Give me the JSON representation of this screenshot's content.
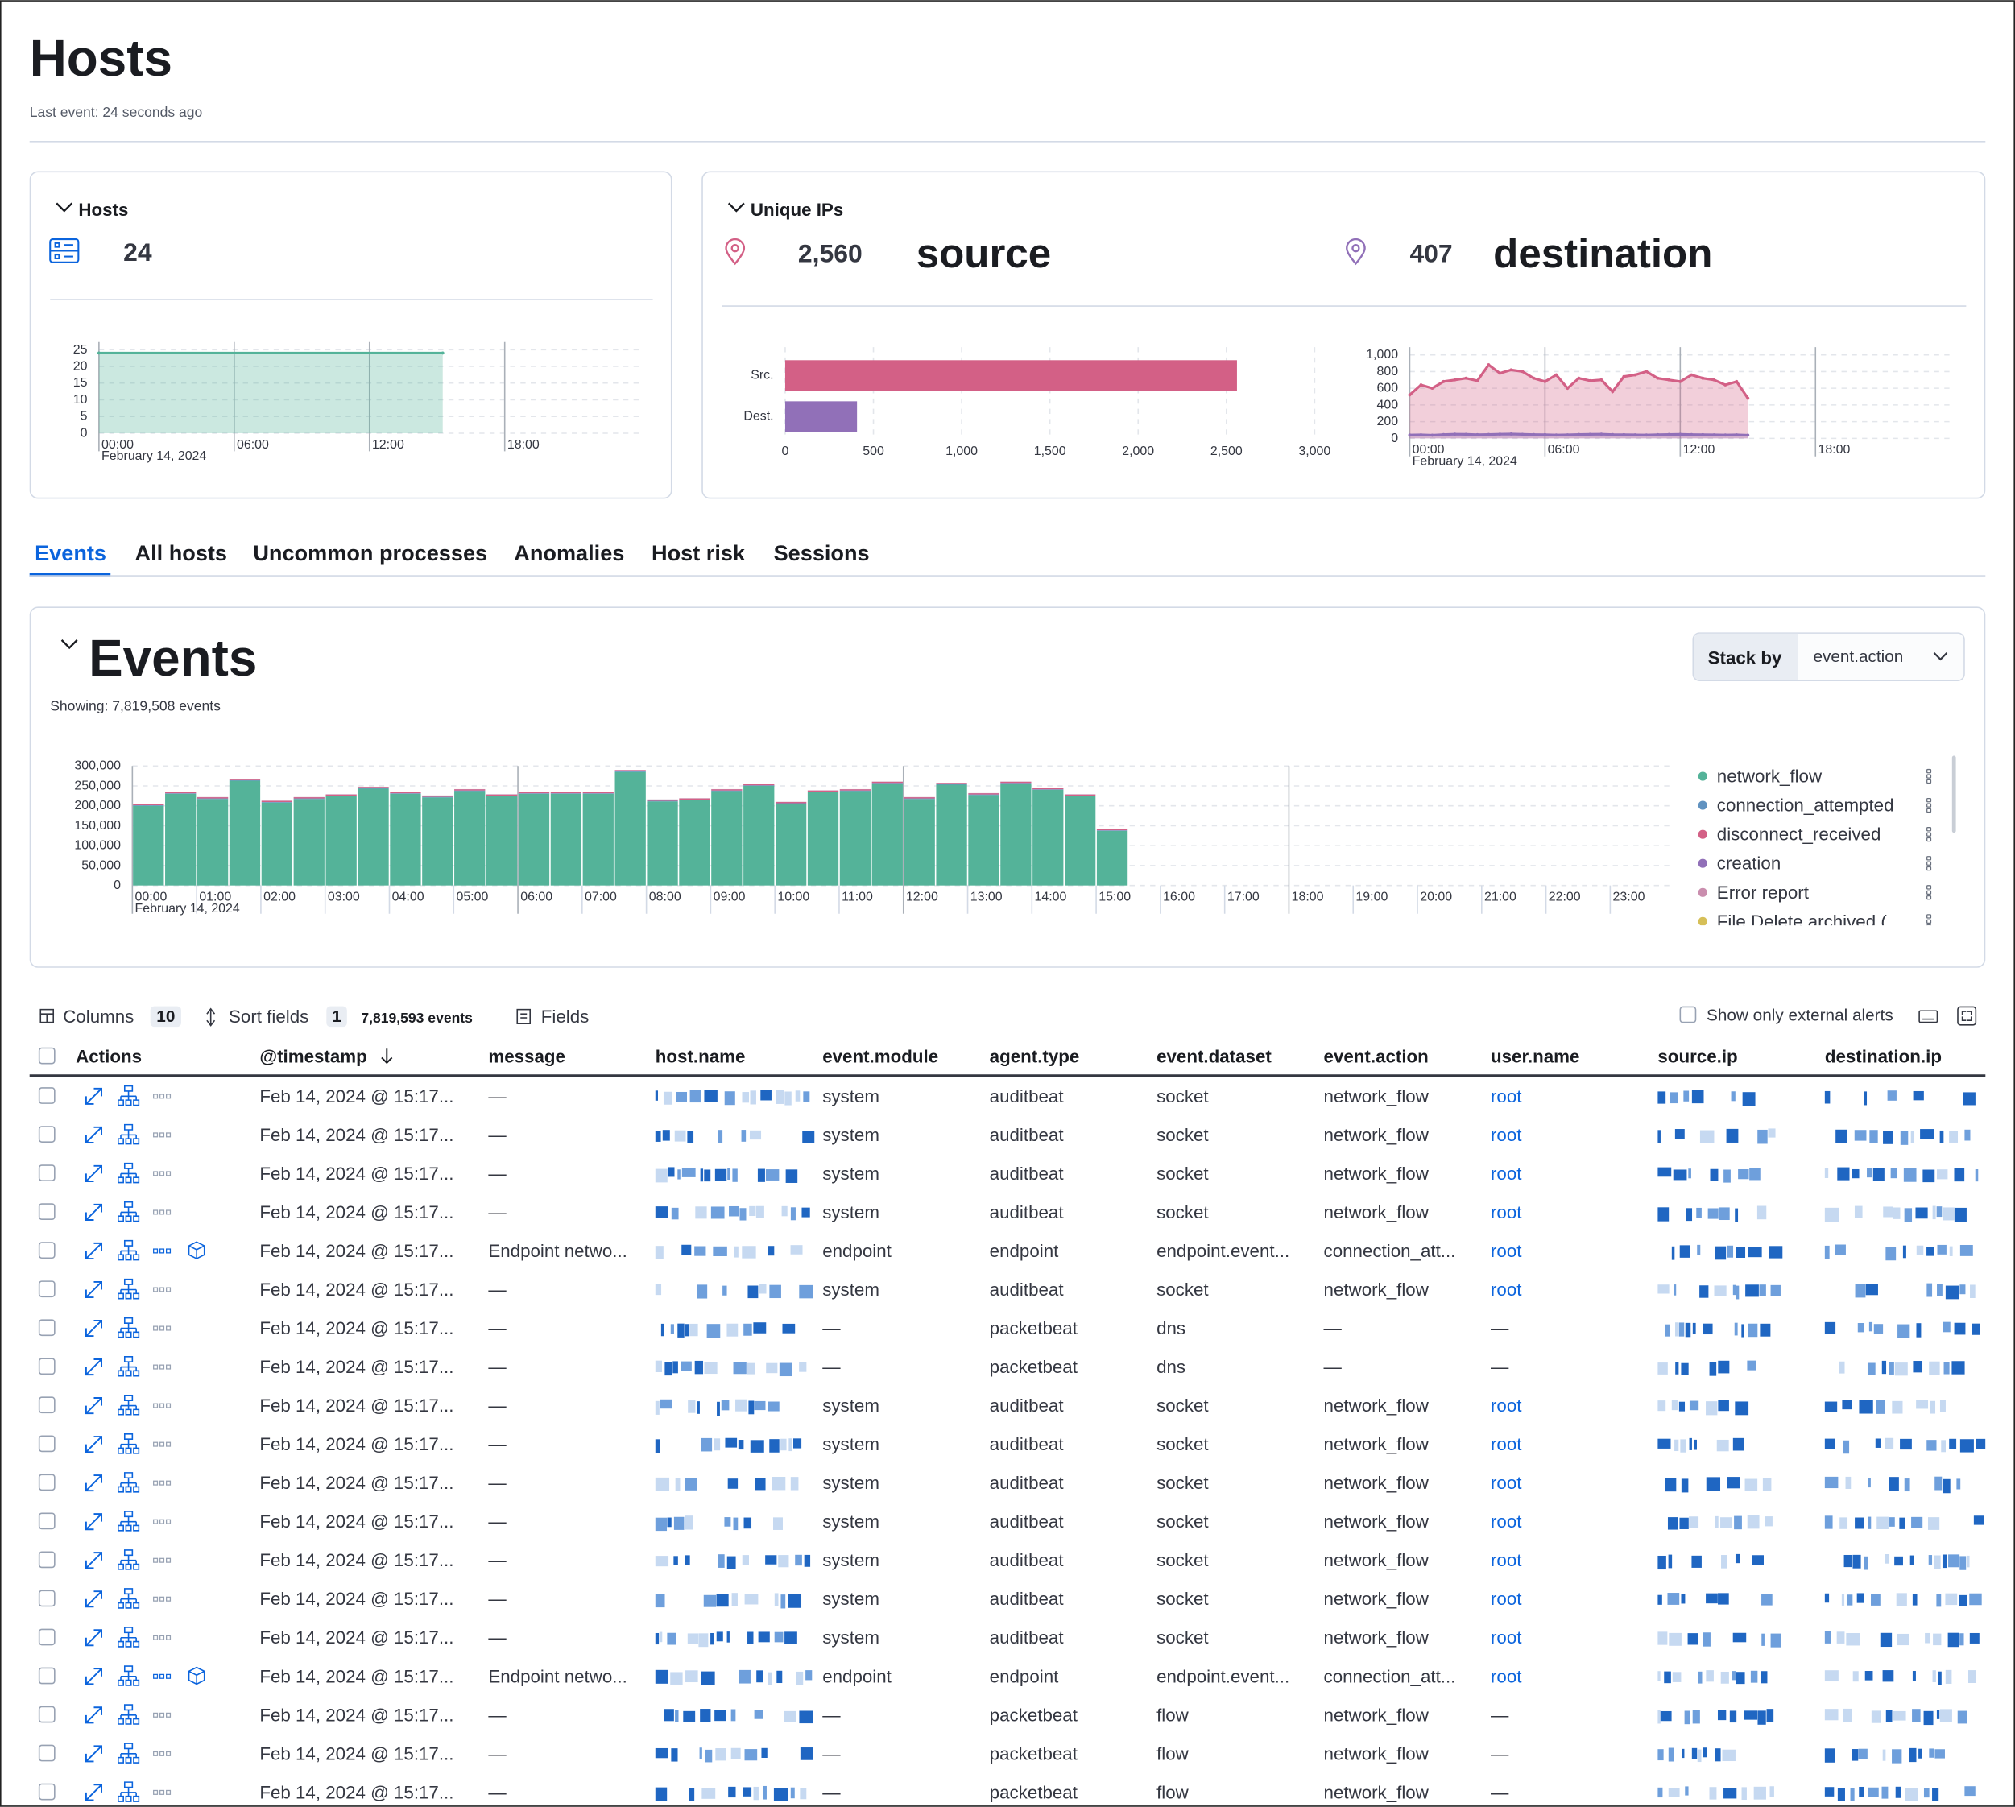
{
  "header": {
    "title": "Hosts",
    "subtitle": "Last event: 24 seconds ago"
  },
  "hosts_panel": {
    "title": "Hosts",
    "count": "24"
  },
  "unique_ips_panel": {
    "title": "Unique IPs",
    "source": {
      "count": "2,560",
      "label": "source"
    },
    "destination": {
      "count": "407",
      "label": "destination"
    }
  },
  "tabs": [
    "Events",
    "All hosts",
    "Uncommon processes",
    "Anomalies",
    "Host risk",
    "Sessions"
  ],
  "events_panel": {
    "title": "Events",
    "subtitle": "Showing: 7,819,508 events",
    "stack_by_label": "Stack by",
    "stack_by_value": "event.action"
  },
  "chart_data": [
    {
      "type": "area",
      "x": [
        0,
        15.25
      ],
      "series": [
        {
          "name": "Hosts",
          "color": "#54b399",
          "values": [
            24,
            24
          ]
        }
      ],
      "xlim": [
        0,
        24
      ],
      "xticks": [
        {
          "value": 0,
          "label": "00:00"
        },
        {
          "value": 6,
          "label": "06:00"
        },
        {
          "value": 12,
          "label": "12:00"
        },
        {
          "value": 18,
          "label": "18:00"
        }
      ],
      "x_sublabel": "February 14, 2024",
      "ylim": [
        0,
        25
      ],
      "yticks": [
        0,
        5,
        10,
        15,
        20,
        25
      ],
      "grid": true
    },
    {
      "type": "bar",
      "horizontal": true,
      "categories": [
        "Src.",
        "Dest."
      ],
      "values": [
        2560,
        407
      ],
      "colors": [
        "#d36086",
        "#9170b8"
      ],
      "xlim": [
        0,
        3000
      ],
      "xticks": [
        0,
        500,
        {
          "value": 1000,
          "label": "1,000"
        },
        {
          "value": 1500,
          "label": "1,500"
        },
        {
          "value": 2000,
          "label": "2,000"
        },
        {
          "value": 2500,
          "label": "2,500"
        },
        {
          "value": 3000,
          "label": "3,000"
        }
      ],
      "grid": true
    },
    {
      "type": "area",
      "x": [
        0,
        0.5,
        1,
        1.5,
        2,
        2.5,
        3,
        3.5,
        4,
        4.5,
        5,
        5.5,
        6,
        6.5,
        7,
        7.5,
        8,
        8.5,
        9,
        9.5,
        10,
        10.5,
        11,
        11.5,
        12,
        12.5,
        13,
        13.5,
        14,
        14.5,
        15
      ],
      "series": [
        {
          "name": "source",
          "color": "#d36086",
          "values": [
            520,
            640,
            600,
            680,
            700,
            720,
            690,
            880,
            780,
            820,
            800,
            720,
            680,
            760,
            600,
            720,
            690,
            700,
            560,
            740,
            760,
            800,
            720,
            700,
            680,
            760,
            720,
            700,
            640,
            680,
            480
          ]
        },
        {
          "name": "destination",
          "color": "#9170b8",
          "values": [
            40,
            42,
            38,
            45,
            50,
            48,
            44,
            46,
            50,
            52,
            48,
            45,
            44,
            40,
            42,
            46,
            48,
            50,
            45,
            44,
            42,
            40,
            44,
            46,
            48,
            45,
            44,
            42,
            40,
            42,
            38
          ]
        }
      ],
      "xlim": [
        0,
        24
      ],
      "xticks": [
        {
          "value": 0,
          "label": "00:00"
        },
        {
          "value": 6,
          "label": "06:00"
        },
        {
          "value": 12,
          "label": "12:00"
        },
        {
          "value": 18,
          "label": "18:00"
        }
      ],
      "x_sublabel": "February 14, 2024",
      "ylim": [
        0,
        1000
      ],
      "yticks": [
        0,
        200,
        400,
        600,
        800,
        {
          "value": 1000,
          "label": "1,000"
        }
      ],
      "grid": true
    },
    {
      "type": "bar",
      "stacked": true,
      "x": [
        0,
        0.5,
        1,
        1.5,
        2,
        2.5,
        3,
        3.5,
        4,
        4.5,
        5,
        5.5,
        6,
        6.5,
        7,
        7.5,
        8,
        8.5,
        9,
        9.5,
        10,
        10.5,
        11,
        11.5,
        12,
        12.5,
        13,
        13.5,
        14,
        14.5,
        15
      ],
      "series": [
        {
          "name": "network_flow",
          "color": "#54b399",
          "values": [
            200000,
            230000,
            217000,
            263000,
            208000,
            217000,
            224000,
            243000,
            230000,
            221000,
            237000,
            224000,
            230000,
            230000,
            230000,
            285000,
            211000,
            214000,
            237000,
            250000,
            205000,
            234000,
            237000,
            256000,
            217000,
            253000,
            227000,
            256000,
            240000,
            224000,
            137000
          ]
        },
        {
          "name": "connection_attempted",
          "color": "#6092c0",
          "values": [
            1500,
            1500,
            1500,
            1500,
            1500,
            1500,
            1500,
            1500,
            1500,
            1500,
            1500,
            1500,
            1500,
            1500,
            1500,
            1500,
            1500,
            1500,
            1500,
            1500,
            1500,
            1500,
            1500,
            1500,
            1500,
            1500,
            1500,
            1500,
            1500,
            1500,
            1500
          ]
        },
        {
          "name": "disconnect_received",
          "color": "#d36086",
          "values": [
            3000,
            3000,
            3000,
            3000,
            3000,
            3000,
            3000,
            3000,
            3000,
            3000,
            3000,
            3000,
            3000,
            3000,
            3000,
            3000,
            3000,
            3000,
            3000,
            3000,
            3000,
            3000,
            3000,
            3000,
            3000,
            3000,
            3000,
            3000,
            3000,
            3000,
            3000
          ]
        },
        {
          "name": "creation",
          "color": "#9170b8",
          "values": [
            300,
            300,
            300,
            300,
            300,
            300,
            300,
            300,
            300,
            300,
            300,
            300,
            300,
            300,
            300,
            300,
            300,
            300,
            300,
            300,
            300,
            300,
            300,
            300,
            300,
            300,
            300,
            300,
            300,
            300,
            300
          ]
        },
        {
          "name": "Error report",
          "color": "#ca8eae",
          "values": [
            150,
            150,
            150,
            150,
            150,
            150,
            150,
            150,
            150,
            150,
            150,
            150,
            150,
            150,
            150,
            150,
            150,
            150,
            150,
            150,
            150,
            150,
            150,
            150,
            150,
            150,
            150,
            150,
            150,
            150,
            150
          ]
        },
        {
          "name": "File Delete archived (",
          "color": "#d6bf57",
          "values": [
            50,
            50,
            50,
            50,
            50,
            50,
            50,
            50,
            50,
            50,
            50,
            50,
            50,
            50,
            50,
            50,
            50,
            50,
            50,
            50,
            50,
            50,
            50,
            50,
            50,
            50,
            50,
            50,
            50,
            50,
            50
          ]
        }
      ],
      "xlim": [
        0,
        24
      ],
      "xticks": [
        {
          "value": 0,
          "label": "00:00"
        },
        {
          "value": 1,
          "label": "01:00"
        },
        {
          "value": 2,
          "label": "02:00"
        },
        {
          "value": 3,
          "label": "03:00"
        },
        {
          "value": 4,
          "label": "04:00"
        },
        {
          "value": 5,
          "label": "05:00"
        },
        {
          "value": 6,
          "label": "06:00"
        },
        {
          "value": 7,
          "label": "07:00"
        },
        {
          "value": 8,
          "label": "08:00"
        },
        {
          "value": 9,
          "label": "09:00"
        },
        {
          "value": 10,
          "label": "10:00"
        },
        {
          "value": 11,
          "label": "11:00"
        },
        {
          "value": 12,
          "label": "12:00"
        },
        {
          "value": 13,
          "label": "13:00"
        },
        {
          "value": 14,
          "label": "14:00"
        },
        {
          "value": 15,
          "label": "15:00"
        },
        {
          "value": 16,
          "label": "16:00"
        },
        {
          "value": 17,
          "label": "17:00"
        },
        {
          "value": 18,
          "label": "18:00"
        },
        {
          "value": 19,
          "label": "19:00"
        },
        {
          "value": 20,
          "label": "20:00"
        },
        {
          "value": 21,
          "label": "21:00"
        },
        {
          "value": 22,
          "label": "22:00"
        },
        {
          "value": 23,
          "label": "23:00"
        }
      ],
      "x_sublabel": "February 14, 2024",
      "ylim": [
        0,
        300000
      ],
      "yticks": [
        0,
        {
          "value": 50000,
          "label": "50,000"
        },
        {
          "value": 100000,
          "label": "100,000"
        },
        {
          "value": 150000,
          "label": "150,000"
        },
        {
          "value": 200000,
          "label": "200,000"
        },
        {
          "value": 250000,
          "label": "250,000"
        },
        {
          "value": 300000,
          "label": "300,000"
        }
      ],
      "grid": true
    }
  ],
  "table": {
    "toolbar": {
      "columns_label": "Columns",
      "columns_count": "10",
      "sort_label": "Sort fields",
      "sort_count": "1",
      "events_count": "7,819,593 events",
      "fields_label": "Fields",
      "external_alerts_label": "Show only external alerts"
    },
    "columns": [
      "Actions",
      "@timestamp",
      "message",
      "host.name",
      "event.module",
      "agent.type",
      "event.dataset",
      "event.action",
      "user.name",
      "source.ip",
      "destination.ip"
    ],
    "rows": [
      [
        "Feb 14, 2024 @ 15:17...",
        "—",
        "system",
        "auditbeat",
        "socket",
        "network_flow",
        "root"
      ],
      [
        "Feb 14, 2024 @ 15:17...",
        "—",
        "system",
        "auditbeat",
        "socket",
        "network_flow",
        "root"
      ],
      [
        "Feb 14, 2024 @ 15:17...",
        "—",
        "system",
        "auditbeat",
        "socket",
        "network_flow",
        "root"
      ],
      [
        "Feb 14, 2024 @ 15:17...",
        "—",
        "system",
        "auditbeat",
        "socket",
        "network_flow",
        "root"
      ],
      [
        "Feb 14, 2024 @ 15:17...",
        "Endpoint netwo...",
        "endpoint",
        "endpoint",
        "endpoint.event...",
        "connection_att...",
        "root"
      ],
      [
        "Feb 14, 2024 @ 15:17...",
        "—",
        "system",
        "auditbeat",
        "socket",
        "network_flow",
        "root"
      ],
      [
        "Feb 14, 2024 @ 15:17...",
        "—",
        "—",
        "packetbeat",
        "dns",
        "—",
        "—"
      ],
      [
        "Feb 14, 2024 @ 15:17...",
        "—",
        "—",
        "packetbeat",
        "dns",
        "—",
        "—"
      ],
      [
        "Feb 14, 2024 @ 15:17...",
        "—",
        "system",
        "auditbeat",
        "socket",
        "network_flow",
        "root"
      ],
      [
        "Feb 14, 2024 @ 15:17...",
        "—",
        "system",
        "auditbeat",
        "socket",
        "network_flow",
        "root"
      ],
      [
        "Feb 14, 2024 @ 15:17...",
        "—",
        "system",
        "auditbeat",
        "socket",
        "network_flow",
        "root"
      ],
      [
        "Feb 14, 2024 @ 15:17...",
        "—",
        "system",
        "auditbeat",
        "socket",
        "network_flow",
        "root"
      ],
      [
        "Feb 14, 2024 @ 15:17...",
        "—",
        "system",
        "auditbeat",
        "socket",
        "network_flow",
        "root"
      ],
      [
        "Feb 14, 2024 @ 15:17...",
        "—",
        "system",
        "auditbeat",
        "socket",
        "network_flow",
        "root"
      ],
      [
        "Feb 14, 2024 @ 15:17...",
        "—",
        "system",
        "auditbeat",
        "socket",
        "network_flow",
        "root"
      ],
      [
        "Feb 14, 2024 @ 15:17...",
        "Endpoint netwo...",
        "endpoint",
        "endpoint",
        "endpoint.event...",
        "connection_att...",
        "root"
      ],
      [
        "Feb 14, 2024 @ 15:17...",
        "—",
        "—",
        "packetbeat",
        "flow",
        "network_flow",
        "—"
      ],
      [
        "Feb 14, 2024 @ 15:17...",
        "—",
        "—",
        "packetbeat",
        "flow",
        "network_flow",
        "—"
      ],
      [
        "Feb 14, 2024 @ 15:17...",
        "—",
        "—",
        "packetbeat",
        "flow",
        "network_flow",
        "—"
      ]
    ]
  }
}
